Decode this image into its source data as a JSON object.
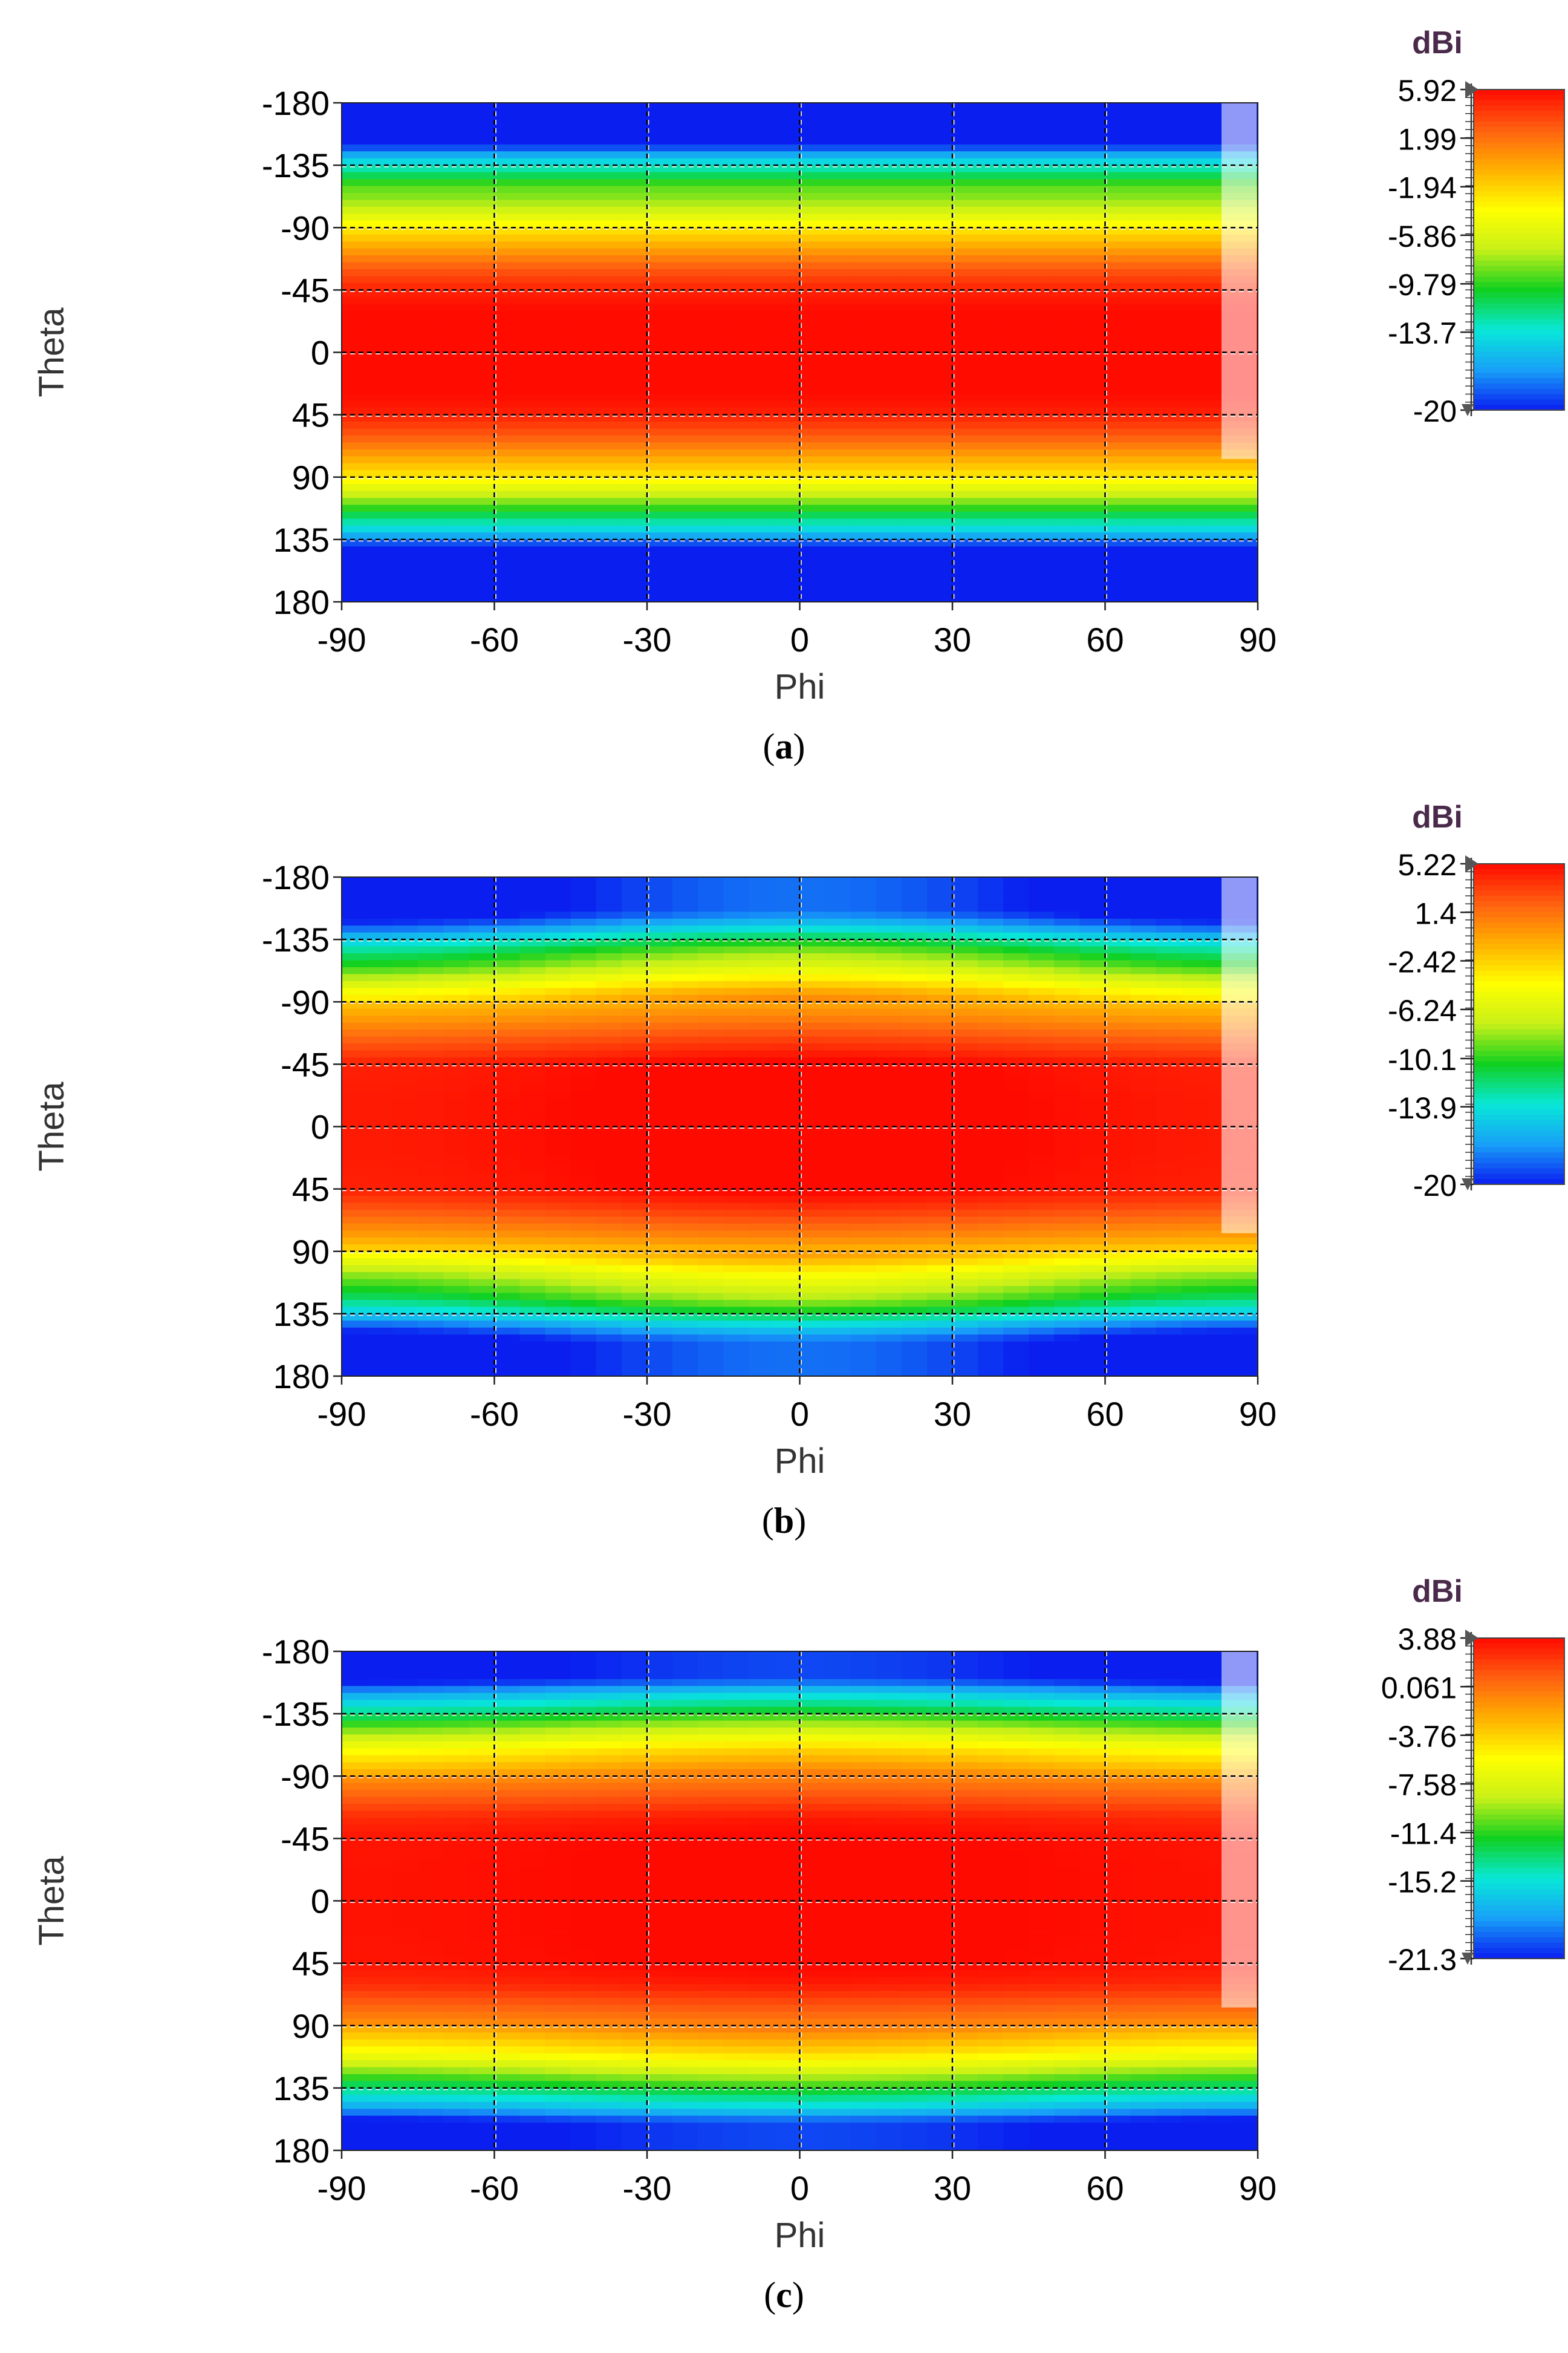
{
  "figure": {
    "panels": [
      {
        "caption_letter": "a"
      },
      {
        "caption_letter": "b"
      },
      {
        "caption_letter": "c"
      }
    ]
  },
  "chart_data": [
    {
      "type": "heatmap",
      "title": "",
      "xlabel": "Phi",
      "ylabel": "Theta",
      "xlim": [
        -90,
        90
      ],
      "ylim": [
        -180,
        180
      ],
      "x_ticks": [
        "-90",
        "-60",
        "-30",
        "0",
        "30",
        "60",
        "90"
      ],
      "y_ticks": [
        "-180",
        "-135",
        "-90",
        "-45",
        "0",
        "45",
        "90",
        "135",
        "180"
      ],
      "grid": true,
      "colorbar": {
        "unit": "dBi",
        "min": -20,
        "max": 5.92,
        "tick_labels": [
          "5.92",
          "1.99",
          "-1.94",
          "-5.86",
          "-9.79",
          "-13.7",
          "-20"
        ],
        "tick_values": [
          5.92,
          1.99,
          -1.94,
          -5.86,
          -9.79,
          -13.7,
          -20
        ]
      },
      "theta_profile": {
        "theta": [
          -180,
          -160,
          -150,
          -140,
          -130,
          -120,
          -110,
          -100,
          -90,
          -75,
          -60,
          -45,
          -30,
          0,
          30,
          45,
          60,
          75,
          90,
          100,
          110,
          120,
          130,
          140,
          150,
          180
        ],
        "gain": [
          -20,
          -20,
          -20,
          -15,
          -12,
          -9,
          -8,
          -6,
          -3,
          0,
          3,
          5,
          5.9,
          5.9,
          5.9,
          5,
          3,
          0,
          -3,
          -6,
          -9,
          -12,
          -15,
          -20,
          -20,
          -20
        ]
      },
      "phi_variation": 0.0
    },
    {
      "type": "heatmap",
      "title": "",
      "xlabel": "Phi",
      "ylabel": "Theta",
      "xlim": [
        -90,
        90
      ],
      "ylim": [
        -180,
        180
      ],
      "x_ticks": [
        "-90",
        "-60",
        "-30",
        "0",
        "30",
        "60",
        "90"
      ],
      "y_ticks": [
        "-180",
        "-135",
        "-90",
        "-45",
        "0",
        "45",
        "90",
        "135",
        "180"
      ],
      "grid": true,
      "colorbar": {
        "unit": "dBi",
        "min": -20,
        "max": 5.22,
        "tick_labels": [
          "5.22",
          "1.4",
          "-2.42",
          "-6.24",
          "-10.1",
          "-13.9",
          "-20"
        ],
        "tick_values": [
          5.22,
          1.4,
          -2.42,
          -6.24,
          -10.1,
          -13.9,
          -20
        ]
      },
      "theta_profile": {
        "theta": [
          -180,
          -155,
          -145,
          -135,
          -125,
          -115,
          -105,
          -95,
          -80,
          -60,
          -45,
          -20,
          0,
          20,
          45,
          60,
          80,
          95,
          105,
          115,
          125,
          135,
          145,
          155,
          180
        ],
        "gain": [
          -20,
          -20,
          -17,
          -13,
          -10,
          -8,
          -5,
          -2,
          0,
          3,
          5,
          5.2,
          5.2,
          5.2,
          5,
          3,
          0,
          -3,
          -6,
          -8,
          -10,
          -13,
          -17,
          -20,
          -20
        ]
      },
      "phi_variation": 2.0
    },
    {
      "type": "heatmap",
      "title": "",
      "xlabel": "Phi",
      "ylabel": "Theta",
      "xlim": [
        -90,
        90
      ],
      "ylim": [
        -180,
        180
      ],
      "x_ticks": [
        "-90",
        "-60",
        "-30",
        "0",
        "30",
        "60",
        "90"
      ],
      "y_ticks": [
        "-180",
        "-135",
        "-90",
        "-45",
        "0",
        "45",
        "90",
        "135",
        "180"
      ],
      "grid": true,
      "colorbar": {
        "unit": "dBi",
        "min": -21.3,
        "max": 3.88,
        "tick_labels": [
          "3.88",
          "0.061",
          "-3.76",
          "-7.58",
          "-11.4",
          "-15.2",
          "-21.3"
        ],
        "tick_values": [
          3.88,
          0.061,
          -3.76,
          -7.58,
          -11.4,
          -15.2,
          -21.3
        ]
      },
      "theta_profile": {
        "theta": [
          -180,
          -160,
          -150,
          -140,
          -130,
          -120,
          -110,
          -100,
          -90,
          -75,
          -60,
          -45,
          -20,
          0,
          20,
          45,
          60,
          75,
          90,
          100,
          110,
          120,
          130,
          140,
          150,
          160,
          180
        ],
        "gain": [
          -21.3,
          -21.3,
          -17,
          -14,
          -11,
          -8,
          -5,
          -3,
          -1,
          1,
          3,
          3.8,
          3.88,
          3.88,
          3.88,
          3.8,
          3,
          1,
          -1,
          -3,
          -5,
          -8,
          -11,
          -14,
          -17,
          -21.3,
          -21.3
        ]
      },
      "phi_variation": 1.0
    }
  ],
  "colormap": {
    "stops": [
      "#0a1ef0",
      "#18a0f8",
      "#08e8d8",
      "#10d020",
      "#c8f018",
      "#ffff00",
      "#ffb000",
      "#ff6010",
      "#ff0a00"
    ]
  }
}
